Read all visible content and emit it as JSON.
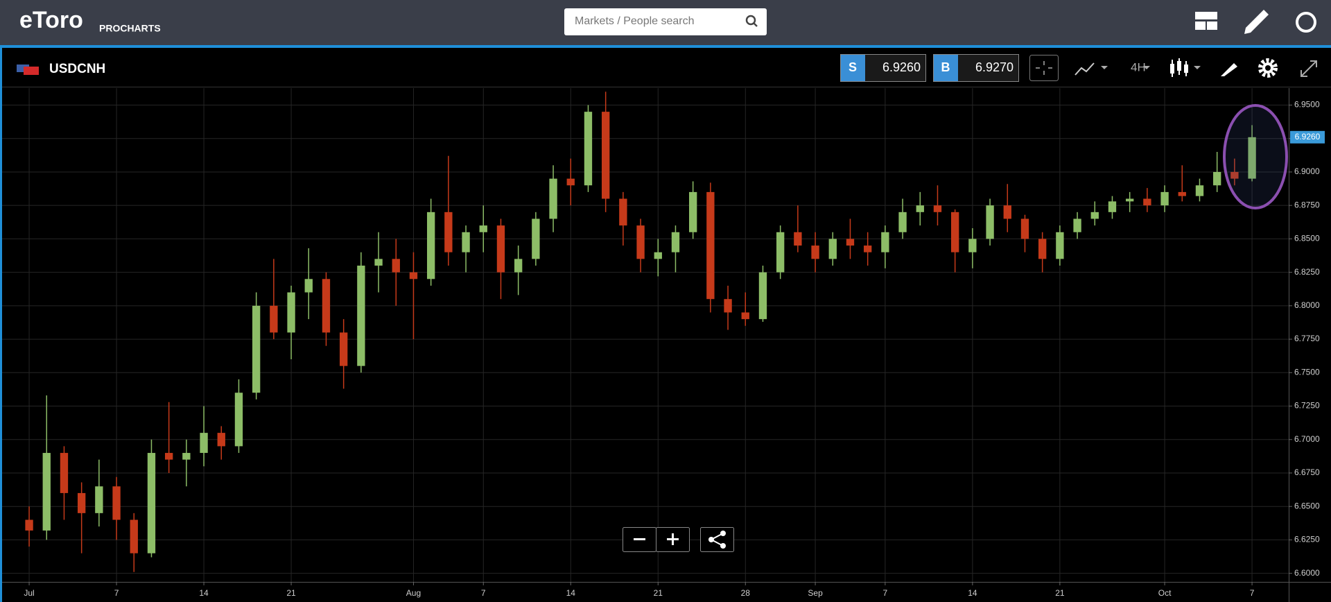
{
  "header": {
    "logo": "eToro",
    "product": "PROCHARTS",
    "search_placeholder": "Markets / People search"
  },
  "toolbar": {
    "symbol": "USDCNH",
    "sell_label": "S",
    "sell_price": "6.9260",
    "buy_label": "B",
    "buy_price": "6.9270",
    "timeframe": "4H"
  },
  "chart_data": {
    "type": "candlestick",
    "x": [
      0,
      1,
      2,
      3,
      4,
      5,
      6,
      7,
      8,
      9,
      10,
      11,
      12,
      13,
      14,
      15,
      16,
      17,
      18,
      19,
      20,
      21,
      22,
      23,
      24,
      25,
      26,
      27,
      28,
      29,
      30,
      31,
      32,
      33,
      34,
      35,
      36,
      37,
      38,
      39,
      40,
      41,
      42,
      43,
      44,
      45,
      46,
      47,
      48,
      49,
      50,
      51,
      52,
      53,
      54,
      55,
      56,
      57,
      58,
      59,
      60,
      61,
      62,
      63,
      64,
      65,
      66,
      67,
      68,
      69,
      70
    ],
    "open": [
      6.64,
      6.632,
      6.69,
      6.66,
      6.645,
      6.665,
      6.64,
      6.615,
      6.69,
      6.685,
      6.69,
      6.705,
      6.695,
      6.735,
      6.8,
      6.78,
      6.81,
      6.82,
      6.78,
      6.755,
      6.83,
      6.835,
      6.825,
      6.82,
      6.87,
      6.84,
      6.855,
      6.86,
      6.825,
      6.835,
      6.865,
      6.895,
      6.89,
      6.945,
      6.88,
      6.86,
      6.835,
      6.84,
      6.855,
      6.885,
      6.805,
      6.795,
      6.79,
      6.825,
      6.855,
      6.845,
      6.835,
      6.85,
      6.845,
      6.84,
      6.855,
      6.87,
      6.875,
      6.87,
      6.84,
      6.85,
      6.875,
      6.865,
      6.85,
      6.835,
      6.855,
      6.865,
      6.87,
      6.878,
      6.88,
      6.875,
      6.885,
      6.882,
      6.89,
      6.9,
      6.895
    ],
    "high": [
      6.65,
      6.733,
      6.695,
      6.668,
      6.685,
      6.672,
      6.645,
      6.7,
      6.728,
      6.7,
      6.725,
      6.71,
      6.745,
      6.81,
      6.835,
      6.815,
      6.843,
      6.825,
      6.79,
      6.84,
      6.855,
      6.85,
      6.84,
      6.88,
      6.912,
      6.86,
      6.875,
      6.865,
      6.845,
      6.87,
      6.905,
      6.91,
      6.95,
      6.96,
      6.885,
      6.865,
      6.85,
      6.86,
      6.893,
      6.892,
      6.815,
      6.81,
      6.83,
      6.86,
      6.875,
      6.855,
      6.855,
      6.865,
      6.855,
      6.86,
      6.88,
      6.885,
      6.89,
      6.872,
      6.858,
      6.88,
      6.891,
      6.868,
      6.855,
      6.86,
      6.87,
      6.878,
      6.882,
      6.885,
      6.888,
      6.89,
      6.905,
      6.895,
      6.915,
      6.91,
      6.935
    ],
    "low": [
      6.62,
      6.625,
      6.64,
      6.615,
      6.635,
      6.625,
      6.601,
      6.612,
      6.675,
      6.665,
      6.68,
      6.685,
      6.69,
      6.73,
      6.775,
      6.76,
      6.79,
      6.77,
      6.738,
      6.75,
      6.81,
      6.8,
      6.775,
      6.815,
      6.83,
      6.825,
      6.84,
      6.805,
      6.808,
      6.83,
      6.855,
      6.875,
      6.885,
      6.87,
      6.845,
      6.825,
      6.822,
      6.825,
      6.85,
      6.795,
      6.782,
      6.785,
      6.788,
      6.82,
      6.84,
      6.825,
      6.83,
      6.835,
      6.83,
      6.828,
      6.85,
      6.86,
      6.86,
      6.825,
      6.828,
      6.845,
      6.855,
      6.84,
      6.825,
      6.83,
      6.85,
      6.86,
      6.865,
      6.87,
      6.87,
      6.87,
      6.878,
      6.878,
      6.885,
      6.89,
      6.893
    ],
    "close": [
      6.632,
      6.69,
      6.66,
      6.645,
      6.665,
      6.64,
      6.615,
      6.69,
      6.685,
      6.69,
      6.705,
      6.695,
      6.735,
      6.8,
      6.78,
      6.81,
      6.82,
      6.78,
      6.755,
      6.83,
      6.835,
      6.825,
      6.82,
      6.87,
      6.84,
      6.855,
      6.86,
      6.825,
      6.835,
      6.865,
      6.895,
      6.89,
      6.945,
      6.88,
      6.86,
      6.835,
      6.84,
      6.855,
      6.885,
      6.805,
      6.795,
      6.79,
      6.825,
      6.855,
      6.845,
      6.835,
      6.85,
      6.845,
      6.84,
      6.855,
      6.87,
      6.875,
      6.87,
      6.84,
      6.85,
      6.875,
      6.865,
      6.85,
      6.835,
      6.855,
      6.865,
      6.87,
      6.878,
      6.88,
      6.875,
      6.885,
      6.882,
      6.89,
      6.9,
      6.895,
      6.926
    ],
    "up_color": "#8dbd67",
    "down_color": "#c63a1a",
    "xlim": [
      -1.55,
      72.1
    ],
    "xticks": [
      {
        "value": 0,
        "label": "Jul"
      },
      {
        "value": 5,
        "label": "7"
      },
      {
        "value": 10,
        "label": "14"
      },
      {
        "value": 15,
        "label": "21"
      },
      {
        "value": 22,
        "label": "Aug"
      },
      {
        "value": 26,
        "label": "7"
      },
      {
        "value": 31,
        "label": "14"
      },
      {
        "value": 36,
        "label": "21"
      },
      {
        "value": 41,
        "label": "28"
      },
      {
        "value": 45,
        "label": "Sep"
      },
      {
        "value": 49,
        "label": "7"
      },
      {
        "value": 54,
        "label": "14"
      },
      {
        "value": 59,
        "label": "21"
      },
      {
        "value": 65,
        "label": "Oct"
      },
      {
        "value": 70,
        "label": "7"
      }
    ],
    "ylim": [
      6.5936,
      6.9627
    ],
    "yticks": [
      {
        "value": 6.6,
        "label": "6.6000"
      },
      {
        "value": 6.625,
        "label": "6.6250"
      },
      {
        "value": 6.65,
        "label": "6.6500"
      },
      {
        "value": 6.675,
        "label": "6.6750"
      },
      {
        "value": 6.7,
        "label": "6.7000"
      },
      {
        "value": 6.725,
        "label": "6.7250"
      },
      {
        "value": 6.75,
        "label": "6.7500"
      },
      {
        "value": 6.775,
        "label": "6.7750"
      },
      {
        "value": 6.8,
        "label": "6.8000"
      },
      {
        "value": 6.825,
        "label": "6.8250"
      },
      {
        "value": 6.85,
        "label": "6.8500"
      },
      {
        "value": 6.875,
        "label": "6.8750"
      },
      {
        "value": 6.9,
        "label": "6.9000"
      },
      {
        "value": 6.925,
        "label": "6.9250"
      },
      {
        "value": 6.95,
        "label": "6.9500"
      }
    ],
    "last_price": {
      "value": 6.926,
      "label": "6.9260"
    },
    "grid": true
  }
}
